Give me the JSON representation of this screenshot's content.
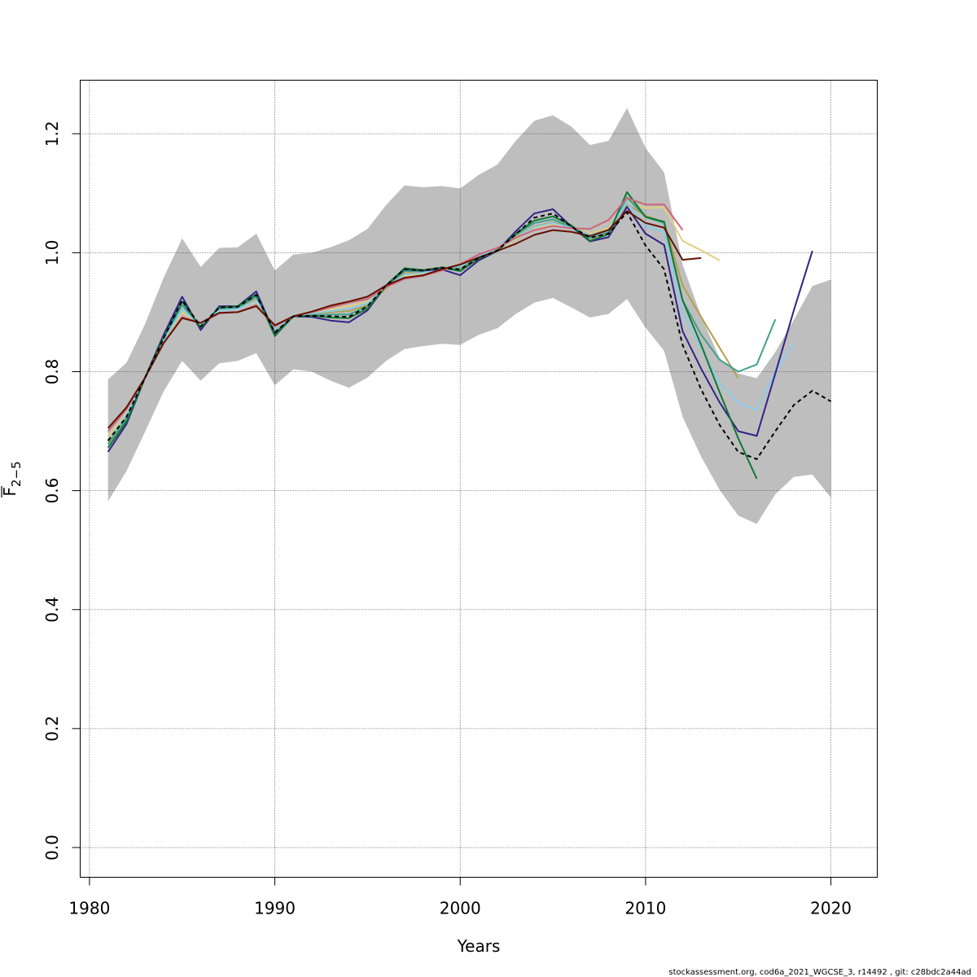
{
  "chart_data": {
    "type": "line",
    "xlabel": "Years",
    "ylabel_main": "F",
    "ylabel_sub": "2−5",
    "xlim": [
      1979.5,
      2022.5
    ],
    "ylim": [
      -0.05,
      1.29
    ],
    "x_ticks": [
      1980,
      1990,
      2000,
      2010,
      2020
    ],
    "x_tick_labels": [
      "1980",
      "1990",
      "2000",
      "2010",
      "2020"
    ],
    "y_ticks": [
      0.0,
      0.2,
      0.4,
      0.6,
      0.8,
      1.0,
      1.2
    ],
    "y_tick_labels": [
      "0.0",
      "0.2",
      "0.4",
      "0.6",
      "0.8",
      "1.0",
      "1.2"
    ],
    "grid": true,
    "confidence_band": {
      "color": "#bebebe",
      "x": [
        1981,
        1982,
        1983,
        1984,
        1985,
        1986,
        1987,
        1988,
        1989,
        1990,
        1991,
        1992,
        1993,
        1994,
        1995,
        1996,
        1997,
        1998,
        1999,
        2000,
        2001,
        2002,
        2003,
        2004,
        2005,
        2006,
        2007,
        2008,
        2009,
        2010,
        2011,
        2012,
        2013,
        2014,
        2015,
        2016,
        2017,
        2018,
        2019,
        2020
      ],
      "upper": [
        0.787,
        0.815,
        0.88,
        0.958,
        1.024,
        0.976,
        1.008,
        1.009,
        1.032,
        0.97,
        0.997,
        1.0,
        1.009,
        1.021,
        1.04,
        1.08,
        1.113,
        1.11,
        1.112,
        1.108,
        1.131,
        1.148,
        1.188,
        1.222,
        1.231,
        1.212,
        1.181,
        1.188,
        1.243,
        1.176,
        1.135,
        0.98,
        0.893,
        0.822,
        0.797,
        0.789,
        0.833,
        0.887,
        0.944,
        0.955
      ],
      "lower": [
        0.582,
        0.633,
        0.699,
        0.767,
        0.818,
        0.785,
        0.814,
        0.818,
        0.831,
        0.777,
        0.804,
        0.8,
        0.785,
        0.773,
        0.79,
        0.818,
        0.838,
        0.843,
        0.847,
        0.845,
        0.862,
        0.873,
        0.897,
        0.916,
        0.924,
        0.908,
        0.891,
        0.897,
        0.922,
        0.874,
        0.835,
        0.724,
        0.657,
        0.601,
        0.558,
        0.544,
        0.594,
        0.623,
        0.627,
        0.588
      ]
    },
    "series": [
      {
        "color": "#e2cf7e",
        "width": 2,
        "dash": "",
        "x": [
          1981,
          1982,
          1983,
          1984,
          1985,
          1986,
          1987,
          1988,
          1989,
          1990,
          1991,
          1992,
          1993,
          1994,
          1995,
          1996,
          1997,
          1998,
          1999,
          2000,
          2001,
          2002,
          2003,
          2004,
          2005,
          2006,
          2007,
          2008,
          2009,
          2010,
          2011,
          2012,
          2013,
          2014
        ],
        "values": [
          0.69,
          0.73,
          0.79,
          0.85,
          0.9,
          0.88,
          0.903,
          0.905,
          0.918,
          0.875,
          0.893,
          0.899,
          0.905,
          0.91,
          0.918,
          0.94,
          0.96,
          0.965,
          0.973,
          0.978,
          0.993,
          1.003,
          1.023,
          1.04,
          1.048,
          1.043,
          1.033,
          1.041,
          1.085,
          1.075,
          1.076,
          1.02,
          1.004,
          0.987
        ]
      },
      {
        "color": "#b3a04b",
        "width": 2,
        "dash": "",
        "x": [
          1981,
          1982,
          1983,
          1984,
          1985,
          1986,
          1987,
          1988,
          1989,
          1990,
          1991,
          1992,
          1993,
          1994,
          1995,
          1996,
          1997,
          1998,
          1999,
          2000,
          2001,
          2002,
          2003,
          2004,
          2005,
          2006,
          2007,
          2008,
          2009,
          2010,
          2011,
          2012,
          2013,
          2014,
          2015
        ],
        "values": [
          0.682,
          0.725,
          0.79,
          0.852,
          0.905,
          0.878,
          0.905,
          0.906,
          0.922,
          0.868,
          0.893,
          0.897,
          0.9,
          0.902,
          0.912,
          0.94,
          0.965,
          0.967,
          0.975,
          0.976,
          0.993,
          1.004,
          1.026,
          1.044,
          1.051,
          1.044,
          1.03,
          1.039,
          1.082,
          1.062,
          1.051,
          0.945,
          0.892,
          0.84,
          0.789
        ]
      },
      {
        "color": "#3fa08c",
        "width": 2,
        "dash": "",
        "x": [
          1981,
          1982,
          1983,
          1984,
          1985,
          1986,
          1987,
          1988,
          1989,
          1990,
          1991,
          1992,
          1993,
          1994,
          1995,
          1996,
          1997,
          1998,
          1999,
          2000,
          2001,
          2002,
          2003,
          2004,
          2005,
          2006,
          2007,
          2008,
          2009,
          2010,
          2011,
          2012,
          2013,
          2014,
          2015,
          2016,
          2017
        ],
        "values": [
          0.678,
          0.72,
          0.79,
          0.855,
          0.912,
          0.876,
          0.906,
          0.908,
          0.926,
          0.865,
          0.893,
          0.895,
          0.896,
          0.896,
          0.91,
          0.943,
          0.969,
          0.969,
          0.975,
          0.972,
          0.992,
          1.004,
          1.03,
          1.05,
          1.056,
          1.043,
          1.025,
          1.034,
          1.093,
          1.06,
          1.05,
          0.92,
          0.862,
          0.82,
          0.8,
          0.812,
          0.888
        ]
      },
      {
        "color": "#88ccee",
        "width": 2,
        "dash": "",
        "x": [
          1981,
          1982,
          1983,
          1984,
          1985,
          1986,
          1987,
          1988,
          1989,
          1990,
          1991,
          1992,
          1993,
          1994,
          1995,
          1996,
          1997,
          1998,
          1999,
          2000,
          2001,
          2002,
          2003,
          2004,
          2005,
          2006,
          2007,
          2008,
          2009,
          2010,
          2011,
          2012,
          2013,
          2014,
          2015,
          2016,
          2017,
          2018
        ],
        "values": [
          0.684,
          0.728,
          0.79,
          0.852,
          0.905,
          0.878,
          0.903,
          0.905,
          0.92,
          0.872,
          0.893,
          0.898,
          0.902,
          0.905,
          0.915,
          0.942,
          0.963,
          0.966,
          0.974,
          0.977,
          0.994,
          1.005,
          1.025,
          1.043,
          1.05,
          1.042,
          1.03,
          1.038,
          1.085,
          1.045,
          1.035,
          0.9,
          0.84,
          0.78,
          0.748,
          0.735,
          0.8,
          0.848
        ]
      },
      {
        "color": "#332288",
        "width": 2,
        "dash": "",
        "x": [
          1981,
          1982,
          1983,
          1984,
          1985,
          1986,
          1987,
          1988,
          1989,
          1990,
          1991,
          1992,
          1993,
          1994,
          1995,
          1996,
          1997,
          1998,
          1999,
          2000,
          2001,
          2002,
          2003,
          2004,
          2005,
          2006,
          2007,
          2008,
          2009,
          2010,
          2011,
          2012,
          2013,
          2014,
          2015,
          2016,
          2017,
          2018,
          2019
        ],
        "values": [
          0.665,
          0.712,
          0.79,
          0.862,
          0.926,
          0.87,
          0.91,
          0.91,
          0.935,
          0.863,
          0.893,
          0.892,
          0.886,
          0.883,
          0.903,
          0.945,
          0.972,
          0.97,
          0.972,
          0.962,
          0.987,
          1.003,
          1.036,
          1.066,
          1.073,
          1.044,
          1.019,
          1.026,
          1.077,
          1.032,
          1.013,
          0.868,
          0.805,
          0.748,
          0.7,
          0.692,
          0.797,
          0.903,
          1.003
        ]
      },
      {
        "color": "#117733",
        "width": 2,
        "dash": "",
        "x": [
          1981,
          1982,
          1983,
          1984,
          1985,
          1986,
          1987,
          1988,
          1989,
          1990,
          1991,
          1992,
          1993,
          1994,
          1995,
          1996,
          1997,
          1998,
          1999,
          2000,
          2001,
          2002,
          2003,
          2004,
          2005,
          2006,
          2007,
          2008,
          2009,
          2010,
          2011,
          2012,
          2013,
          2014,
          2015,
          2016
        ],
        "values": [
          0.672,
          0.716,
          0.79,
          0.858,
          0.918,
          0.874,
          0.908,
          0.91,
          0.93,
          0.86,
          0.893,
          0.894,
          0.891,
          0.89,
          0.906,
          0.945,
          0.974,
          0.971,
          0.975,
          0.969,
          0.99,
          1.003,
          1.032,
          1.054,
          1.061,
          1.046,
          1.02,
          1.031,
          1.102,
          1.06,
          1.052,
          0.92,
          0.845,
          0.765,
          0.688,
          0.62
        ]
      },
      {
        "color": "#cc6677",
        "width": 2,
        "dash": "",
        "x": [
          1981,
          1982,
          1983,
          1984,
          1985,
          1986,
          1987,
          1988,
          1989,
          1990,
          1991,
          1992,
          1993,
          1994,
          1995,
          1996,
          1997,
          1998,
          1999,
          2000,
          2001,
          2002,
          2003,
          2004,
          2005,
          2006,
          2007,
          2008,
          2009,
          2010,
          2011,
          2012
        ],
        "values": [
          0.7,
          0.737,
          0.79,
          0.848,
          0.892,
          0.882,
          0.898,
          0.9,
          0.912,
          0.876,
          0.893,
          0.9,
          0.908,
          0.916,
          0.922,
          0.942,
          0.956,
          0.961,
          0.97,
          0.981,
          0.997,
          1.008,
          1.025,
          1.038,
          1.045,
          1.041,
          1.04,
          1.055,
          1.092,
          1.081,
          1.081,
          1.038
        ]
      },
      {
        "color": "#661100",
        "width": 2,
        "dash": "",
        "x": [
          1981,
          1982,
          1983,
          1984,
          1985,
          1986,
          1987,
          1988,
          1989,
          1990,
          1991,
          1992,
          1993,
          1994,
          1995,
          1996,
          1997,
          1998,
          1999,
          2000,
          2001,
          2002,
          2003,
          2004,
          2005,
          2006,
          2007,
          2008,
          2009,
          2010,
          2011,
          2012,
          2013
        ],
        "values": [
          0.705,
          0.74,
          0.79,
          0.848,
          0.89,
          0.882,
          0.899,
          0.9,
          0.91,
          0.878,
          0.893,
          0.901,
          0.911,
          0.918,
          0.926,
          0.945,
          0.958,
          0.962,
          0.972,
          0.98,
          0.992,
          1.003,
          1.015,
          1.03,
          1.038,
          1.035,
          1.028,
          1.038,
          1.07,
          1.05,
          1.042,
          0.988,
          0.991
        ]
      },
      {
        "color": "#000000",
        "width": 2,
        "dash": "5,4",
        "x": [
          1981,
          1982,
          1983,
          1984,
          1985,
          1986,
          1987,
          1988,
          1989,
          1990,
          1991,
          1992,
          1993,
          1994,
          1995,
          1996,
          1997,
          1998,
          1999,
          2000,
          2001,
          2002,
          2003,
          2004,
          2005,
          2006,
          2007,
          2008,
          2009,
          2010,
          2011,
          2012,
          2013,
          2014,
          2015,
          2016,
          2017,
          2018,
          2019,
          2020
        ],
        "values": [
          0.684,
          0.724,
          0.79,
          0.856,
          0.92,
          0.876,
          0.908,
          0.909,
          0.929,
          0.866,
          0.893,
          0.894,
          0.893,
          0.892,
          0.91,
          0.945,
          0.972,
          0.97,
          0.975,
          0.972,
          0.991,
          1.004,
          1.031,
          1.059,
          1.066,
          1.044,
          1.025,
          1.032,
          1.068,
          1.012,
          0.972,
          0.845,
          0.77,
          0.71,
          0.665,
          0.653,
          0.7,
          0.744,
          0.768,
          0.75
        ]
      }
    ]
  },
  "footer_text": "stockassessment.org, cod6a_2021_WGCSE_3, r14492 , git: c28bdc2a44ad"
}
